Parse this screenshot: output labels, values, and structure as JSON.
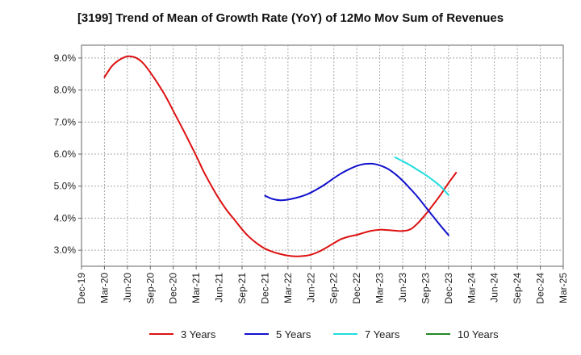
{
  "chart_data": {
    "type": "line",
    "title": "[3199]  Trend of Mean of Growth Rate (YoY) of 12Mo Mov Sum of Revenues",
    "xlabel": "",
    "ylabel": "",
    "ylim": [
      2.5,
      9.4
    ],
    "yticks": [
      "3.0%",
      "4.0%",
      "5.0%",
      "6.0%",
      "7.0%",
      "8.0%",
      "9.0%"
    ],
    "ytick_values": [
      3.0,
      4.0,
      5.0,
      6.0,
      7.0,
      8.0,
      9.0
    ],
    "x_categories": [
      "Dec-19",
      "Mar-20",
      "Jun-20",
      "Sep-20",
      "Dec-20",
      "Mar-21",
      "Jun-21",
      "Sep-21",
      "Dec-21",
      "Mar-22",
      "Jun-22",
      "Sep-22",
      "Dec-22",
      "Mar-23",
      "Jun-23",
      "Sep-23",
      "Dec-23",
      "Mar-24",
      "Jun-24",
      "Sep-24",
      "Dec-24",
      "Mar-25"
    ],
    "grid": true,
    "legend_position": "bottom",
    "series": [
      {
        "name": "3 Years",
        "color": "#dd1111",
        "points": [
          [
            1,
            8.4
          ],
          [
            1.33,
            8.75
          ],
          [
            1.67,
            8.95
          ],
          [
            2,
            9.05
          ],
          [
            2.33,
            9.02
          ],
          [
            2.67,
            8.85
          ],
          [
            3,
            8.55
          ],
          [
            3.33,
            8.2
          ],
          [
            3.67,
            7.8
          ],
          [
            4,
            7.35
          ],
          [
            4.33,
            6.9
          ],
          [
            4.67,
            6.42
          ],
          [
            5,
            5.95
          ],
          [
            5.33,
            5.45
          ],
          [
            5.67,
            5.0
          ],
          [
            6,
            4.6
          ],
          [
            6.33,
            4.25
          ],
          [
            6.67,
            3.95
          ],
          [
            7,
            3.65
          ],
          [
            7.33,
            3.4
          ],
          [
            7.67,
            3.2
          ],
          [
            8,
            3.05
          ],
          [
            8.33,
            2.95
          ],
          [
            8.67,
            2.88
          ],
          [
            9,
            2.83
          ],
          [
            9.33,
            2.81
          ],
          [
            9.67,
            2.82
          ],
          [
            10,
            2.86
          ],
          [
            10.33,
            2.95
          ],
          [
            10.67,
            3.08
          ],
          [
            11,
            3.22
          ],
          [
            11.33,
            3.35
          ],
          [
            11.67,
            3.43
          ],
          [
            12,
            3.48
          ],
          [
            12.33,
            3.55
          ],
          [
            12.67,
            3.61
          ],
          [
            13,
            3.64
          ],
          [
            13.33,
            3.63
          ],
          [
            13.67,
            3.61
          ],
          [
            14,
            3.6
          ],
          [
            14.33,
            3.65
          ],
          [
            14.67,
            3.85
          ],
          [
            15,
            4.12
          ],
          [
            15.33,
            4.42
          ],
          [
            15.67,
            4.75
          ],
          [
            16,
            5.1
          ],
          [
            16.33,
            5.42
          ]
        ]
      },
      {
        "name": "5 Years",
        "color": "#1111cc",
        "points": [
          [
            8,
            4.7
          ],
          [
            8.33,
            4.6
          ],
          [
            8.67,
            4.56
          ],
          [
            9,
            4.58
          ],
          [
            9.33,
            4.63
          ],
          [
            9.67,
            4.7
          ],
          [
            10,
            4.8
          ],
          [
            10.33,
            4.93
          ],
          [
            10.67,
            5.08
          ],
          [
            11,
            5.25
          ],
          [
            11.33,
            5.4
          ],
          [
            11.67,
            5.53
          ],
          [
            12,
            5.63
          ],
          [
            12.33,
            5.69
          ],
          [
            12.67,
            5.7
          ],
          [
            13,
            5.65
          ],
          [
            13.33,
            5.55
          ],
          [
            13.67,
            5.38
          ],
          [
            14,
            5.17
          ],
          [
            14.33,
            4.92
          ],
          [
            14.67,
            4.65
          ],
          [
            15,
            4.35
          ],
          [
            15.33,
            4.05
          ],
          [
            15.67,
            3.75
          ],
          [
            16,
            3.47
          ]
        ]
      },
      {
        "name": "7 Years",
        "color": "#22dddd",
        "points": [
          [
            13.67,
            5.9
          ],
          [
            14,
            5.78
          ],
          [
            14.33,
            5.65
          ],
          [
            14.67,
            5.5
          ],
          [
            15,
            5.35
          ],
          [
            15.33,
            5.18
          ],
          [
            15.67,
            4.98
          ],
          [
            16,
            4.72
          ]
        ]
      },
      {
        "name": "10 Years",
        "color": "#228822",
        "points": []
      }
    ]
  }
}
